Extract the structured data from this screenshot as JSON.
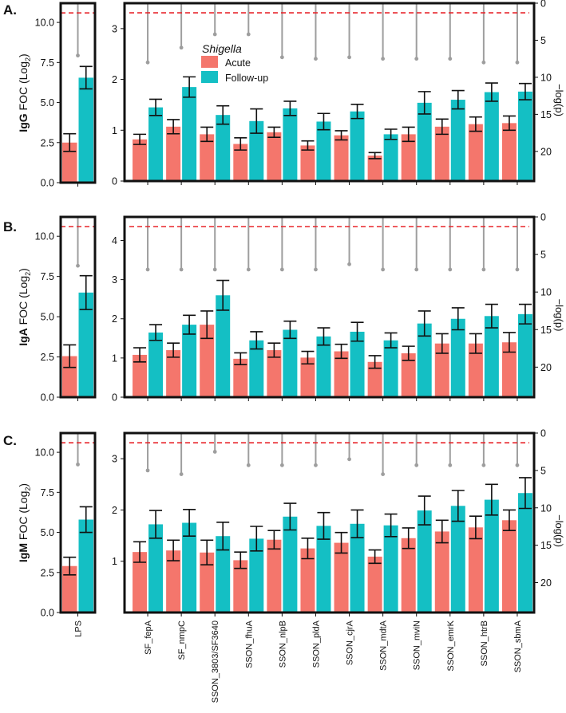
{
  "colors": {
    "acute": "#f4766c",
    "followup": "#14bfc4",
    "threshold": "#e8242a",
    "pvalue": "#9e9e9e",
    "errorbar": "#111111"
  },
  "legend": {
    "title": "Shigella",
    "acute_label": "Acute",
    "followup_label": "Follow-up"
  },
  "right_axis_label": "−log(p)",
  "lps_label": "LPS",
  "chart_data": {
    "type": "bar",
    "categories": [
      "SF_fepA",
      "SF_nmpC",
      "SSON_3803/SF3640",
      "SSON_fhuA",
      "SSON_nlpB",
      "SSON_pldA",
      "SSON_cjrA",
      "SSON_mdtA",
      "SSON_mviN",
      "SSON_emrK",
      "SSON_htrB",
      "SSON_sbmA"
    ],
    "panels": [
      {
        "label": "A.",
        "antibody": "IgG",
        "ylabel_tail": " FOC (Log",
        "lps": {
          "ylim": [
            0,
            11.2
          ],
          "yticks": [
            "0.0",
            "2.5",
            "5.0",
            "7.5",
            "10.0"
          ],
          "ytick_values": [
            0,
            2.5,
            5,
            7.5,
            10
          ],
          "acute": 2.5,
          "acute_err": 0.55,
          "followup": 6.55,
          "followup_err": 0.7,
          "neglogp": 7,
          "threshold": 1.3
        },
        "main": {
          "ylim": [
            0,
            3.5
          ],
          "yticks": [
            "0",
            "1",
            "2",
            "3"
          ],
          "ytick_values": [
            0,
            1,
            2,
            3
          ],
          "acute": [
            0.82,
            1.07,
            0.92,
            0.73,
            0.96,
            0.7,
            0.9,
            0.5,
            0.92,
            1.07,
            1.12,
            1.14
          ],
          "acute_err": [
            0.1,
            0.14,
            0.14,
            0.12,
            0.1,
            0.09,
            0.09,
            0.06,
            0.14,
            0.15,
            0.14,
            0.14
          ],
          "followup": [
            1.45,
            1.85,
            1.3,
            1.18,
            1.43,
            1.17,
            1.37,
            0.92,
            1.54,
            1.6,
            1.75,
            1.76
          ],
          "followup_err": [
            0.16,
            0.2,
            0.18,
            0.24,
            0.14,
            0.16,
            0.14,
            0.1,
            0.22,
            0.18,
            0.18,
            0.16
          ],
          "neglogp": [
            8,
            6,
            4.2,
            4.2,
            7.3,
            7.5,
            7.3,
            7.5,
            7.5,
            7.5,
            8,
            8
          ],
          "rlim": [
            0,
            24
          ],
          "rticks": [
            "0",
            "5",
            "10",
            "15",
            "20"
          ],
          "rtick_values": [
            0,
            5,
            10,
            15,
            20
          ],
          "threshold": 1.3
        }
      },
      {
        "label": "B.",
        "antibody": "IgA",
        "ylabel_tail": " FOC (Log",
        "lps": {
          "ylim": [
            0,
            11.2
          ],
          "yticks": [
            "0.0",
            "2.5",
            "5.0",
            "7.5",
            "10.0"
          ],
          "ytick_values": [
            0,
            2.5,
            5,
            7.5,
            10
          ],
          "acute": 2.55,
          "acute_err": 0.7,
          "followup": 6.5,
          "followup_err": 1.05,
          "neglogp": 6.5,
          "threshold": 1.3
        },
        "main": {
          "ylim": [
            0,
            4.6
          ],
          "yticks": [
            "0",
            "1",
            "2",
            "3",
            "4"
          ],
          "ytick_values": [
            0,
            1,
            2,
            3,
            4
          ],
          "acute": [
            1.08,
            1.2,
            1.85,
            0.98,
            1.2,
            1.01,
            1.17,
            0.9,
            1.12,
            1.37,
            1.37,
            1.4
          ],
          "acute_err": [
            0.18,
            0.18,
            0.35,
            0.15,
            0.18,
            0.16,
            0.18,
            0.16,
            0.18,
            0.25,
            0.25,
            0.25
          ],
          "followup": [
            1.65,
            1.85,
            2.6,
            1.45,
            1.72,
            1.55,
            1.67,
            1.45,
            1.88,
            2.0,
            2.07,
            2.12
          ],
          "followup_err": [
            0.2,
            0.24,
            0.38,
            0.22,
            0.22,
            0.22,
            0.24,
            0.19,
            0.32,
            0.28,
            0.3,
            0.25
          ],
          "neglogp": [
            7,
            7,
            7,
            7,
            7,
            7,
            6.3,
            7,
            7,
            7,
            7,
            7
          ],
          "rlim": [
            0,
            24
          ],
          "rticks": [
            "0",
            "5",
            "10",
            "15",
            "20"
          ],
          "rtick_values": [
            0,
            5,
            10,
            15,
            20
          ],
          "threshold": 1.3
        }
      },
      {
        "label": "C.",
        "antibody": "IgM",
        "ylabel_tail": " FOC (Log",
        "lps": {
          "ylim": [
            0,
            11.2
          ],
          "yticks": [
            "0.0",
            "2.5",
            "5.0",
            "7.5",
            "10.0"
          ],
          "ytick_values": [
            0,
            2.5,
            5,
            7.5,
            10
          ],
          "acute": 2.9,
          "acute_err": 0.55,
          "followup": 5.8,
          "followup_err": 0.8,
          "neglogp": 4.2,
          "threshold": 1.3
        },
        "main": {
          "ylim": [
            0,
            3.5
          ],
          "yticks": [
            "1",
            "2",
            "3"
          ],
          "ytick_values": [
            1,
            2,
            3
          ],
          "acute": [
            1.18,
            1.21,
            1.17,
            1.02,
            1.42,
            1.25,
            1.36,
            1.09,
            1.45,
            1.58,
            1.66,
            1.8
          ],
          "acute_err": [
            0.2,
            0.2,
            0.24,
            0.16,
            0.18,
            0.2,
            0.2,
            0.13,
            0.2,
            0.22,
            0.22,
            0.2
          ],
          "followup": [
            1.72,
            1.75,
            1.49,
            1.44,
            1.87,
            1.69,
            1.73,
            1.7,
            1.99,
            2.08,
            2.2,
            2.33
          ],
          "followup_err": [
            0.27,
            0.26,
            0.27,
            0.24,
            0.26,
            0.26,
            0.27,
            0.22,
            0.28,
            0.3,
            0.3,
            0.3
          ],
          "neglogp": [
            5,
            5.5,
            2.5,
            4.3,
            4.3,
            4.3,
            3.5,
            5.5,
            4.3,
            4.3,
            4.3,
            4.3
          ],
          "rlim": [
            0,
            24
          ],
          "rticks": [
            "0",
            "5",
            "10",
            "15",
            "20"
          ],
          "rtick_values": [
            0,
            5,
            10,
            15,
            20
          ],
          "threshold": 1.3
        }
      }
    ]
  }
}
